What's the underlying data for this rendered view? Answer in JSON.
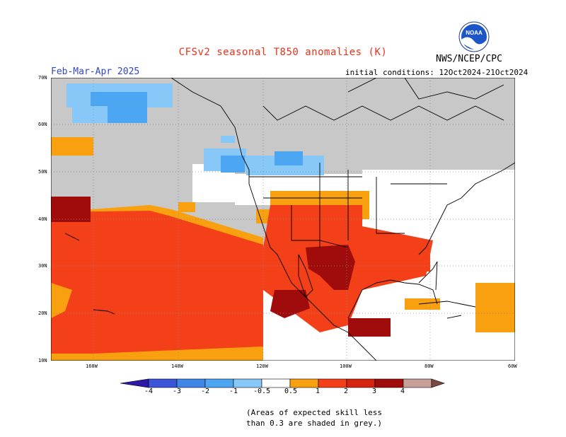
{
  "header": {
    "title": "CFSv2 seasonal T850 anomalies (K)",
    "period": "Feb-Mar-Apr 2025",
    "initial_conditions": "initial conditions: 12Oct2024-21Oct2024",
    "agency": "NWS/NCEP/CPC",
    "logo_text": "NOAA"
  },
  "axes": {
    "lat_labels": [
      "70N",
      "60N",
      "50N",
      "40N",
      "30N",
      "20N",
      "10N"
    ],
    "lon_labels": [
      "160W",
      "140W",
      "120W",
      "100W",
      "80W",
      "60W"
    ]
  },
  "colorbar": {
    "labels": [
      "-4",
      "-3",
      "-2",
      "-1",
      "-0.5",
      "0.5",
      "1",
      "2",
      "3",
      "4"
    ],
    "colors": [
      "#2e1aa8",
      "#3a55d8",
      "#3f86e8",
      "#4ca6f2",
      "#88c8f8",
      "#ffffff",
      "#f8a010",
      "#f44018",
      "#d42410",
      "#a00c0c",
      "#c8a098",
      "#7a4a40"
    ]
  },
  "legend_note": {
    "line1": "(Areas of expected skill less",
    "line2": "than 0.3 are shaded in grey.)"
  },
  "map": {
    "skill_mask_color": "#c8c8c8",
    "land_line_color": "#000000",
    "grid_color": "#888888"
  }
}
